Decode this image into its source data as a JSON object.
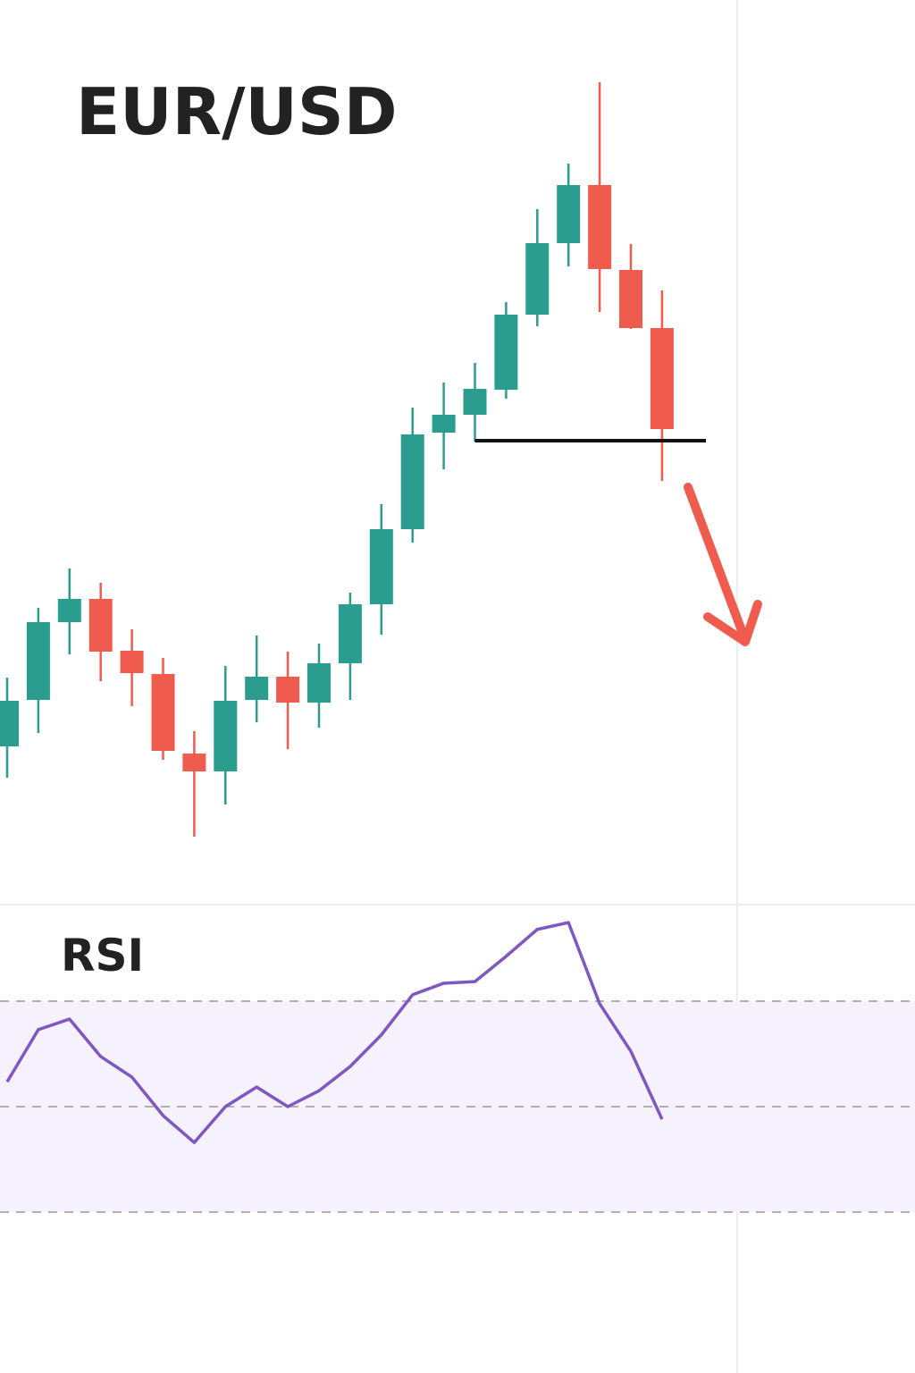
{
  "chart_data": [
    {
      "type": "candlestick",
      "title": "EUR/USD",
      "categories": [
        null,
        null,
        null,
        null,
        null,
        null,
        null,
        null,
        null,
        null,
        null,
        null,
        null,
        null,
        null,
        null,
        null,
        null,
        null,
        null,
        null,
        null
      ],
      "open": [
        165,
        217,
        304,
        330,
        272,
        246,
        157,
        137,
        217,
        243,
        214,
        258,
        324,
        408,
        516,
        536,
        564,
        648,
        728,
        793,
        698,
        633
      ],
      "high": [
        242,
        320,
        364,
        348,
        296,
        264,
        182,
        255,
        289,
        271,
        280,
        337,
        436,
        544,
        572,
        594,
        662,
        766,
        817,
        908,
        727,
        675
      ],
      "low": [
        130,
        180,
        268,
        238,
        210,
        150,
        64,
        100,
        192,
        162,
        186,
        217,
        290,
        393,
        475,
        506,
        554,
        635,
        702,
        651,
        632,
        462
      ],
      "close": [
        216,
        304,
        330,
        271,
        247,
        160,
        137,
        216,
        243,
        214,
        258,
        324,
        408,
        514,
        536,
        565,
        648,
        728,
        793,
        699,
        633,
        520
      ],
      "up_color": "#2a9d8f",
      "down_color": "#ef5b4c",
      "support": 507,
      "support_color": "#111111",
      "ylim": [
        0,
        1000
      ]
    },
    {
      "type": "line",
      "title": "RSI",
      "values": [
        54.7,
        64.6,
        66.6,
        59.5,
        55.6,
        48.3,
        43.2,
        50,
        53.7,
        50,
        53,
        57.6,
        63.6,
        71.2,
        73.4,
        73.7,
        78.5,
        83.6,
        84.9,
        69.5,
        60.5,
        47.6
      ],
      "color": "#7e57c2",
      "levels": [
        30,
        50,
        70
      ],
      "band_color": "#f5f2fd",
      "ylim": [
        20,
        90
      ]
    }
  ]
}
